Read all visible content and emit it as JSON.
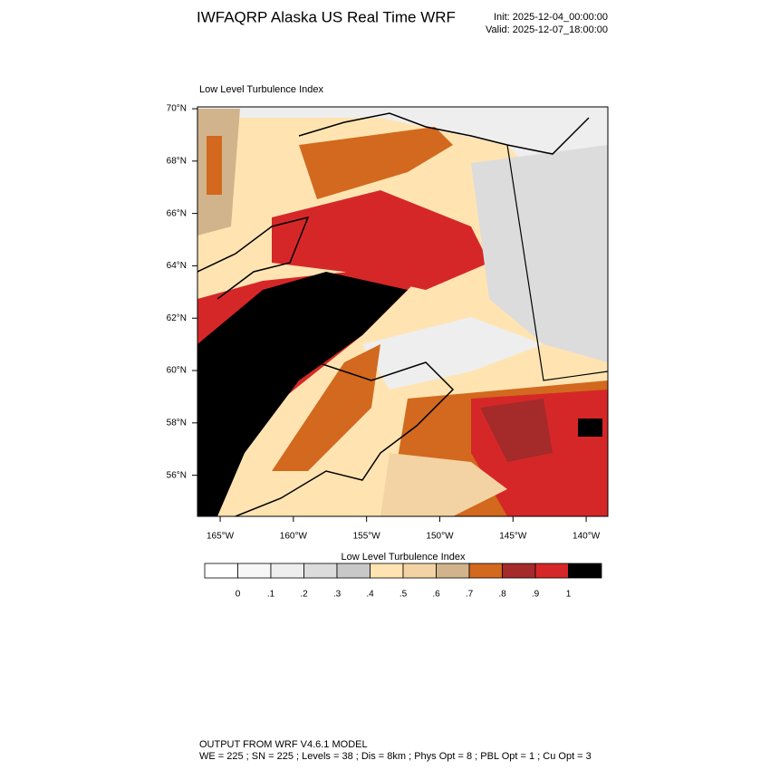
{
  "chart_data": {
    "type": "map",
    "title": "IWFAQRP Alaska US Real Time WRF",
    "init": "Init: 2025-12-04_00:00:00",
    "valid": "Valid: 2025-12-07_18:00:00",
    "panel_title": "Low Level Turbulence Index",
    "xlim": [
      -166.55,
      -138.52
    ],
    "ylim": [
      54.43,
      70.07
    ],
    "xticks": [
      {
        "value": -165,
        "label": "165°W"
      },
      {
        "value": -160,
        "label": "160°W"
      },
      {
        "value": -155,
        "label": "155°W"
      },
      {
        "value": -150,
        "label": "150°W"
      },
      {
        "value": -145,
        "label": "145°W"
      },
      {
        "value": -140,
        "label": "140°W"
      }
    ],
    "yticks": [
      {
        "value": 56,
        "label": "56°N"
      },
      {
        "value": 58,
        "label": "58°N"
      },
      {
        "value": 60,
        "label": "60°N"
      },
      {
        "value": 62,
        "label": "62°N"
      },
      {
        "value": 64,
        "label": "64°N"
      },
      {
        "value": 66,
        "label": "66°N"
      },
      {
        "value": 68,
        "label": "68°N"
      },
      {
        "value": 70,
        "label": "70°N"
      }
    ],
    "colorbar": {
      "title": "Low Level Turbulence Index",
      "colors": [
        "#ffffff",
        "#f7f7f7",
        "#eeeeee",
        "#dcdcdc",
        "#c8c8c8",
        "#ffe4b2",
        "#f3d3a3",
        "#d2b48c",
        "#d2691e",
        "#a52a2a",
        "#d62728",
        "#000000"
      ],
      "ticks": [
        {
          "value": 0,
          "label": "0"
        },
        {
          "value": 0.1,
          "label": ".1"
        },
        {
          "value": 0.2,
          "label": ".2"
        },
        {
          "value": 0.3,
          "label": ".3"
        },
        {
          "value": 0.4,
          "label": ".4"
        },
        {
          "value": 0.5,
          "label": ".5"
        },
        {
          "value": 0.6,
          "label": ".6"
        },
        {
          "value": 0.7,
          "label": ".7"
        },
        {
          "value": 0.8,
          "label": ".8"
        },
        {
          "value": 0.9,
          "label": ".9"
        },
        {
          "value": 1,
          "label": "1"
        }
      ]
    },
    "footer": [
      "OUTPUT FROM WRF V4.6.1 MODEL",
      "WE = 225 ; SN = 225 ; Levels = 38 ; Dis = 8km ; Phys Opt = 8 ; PBL Opt = 1 ; Cu Opt = 3"
    ]
  }
}
